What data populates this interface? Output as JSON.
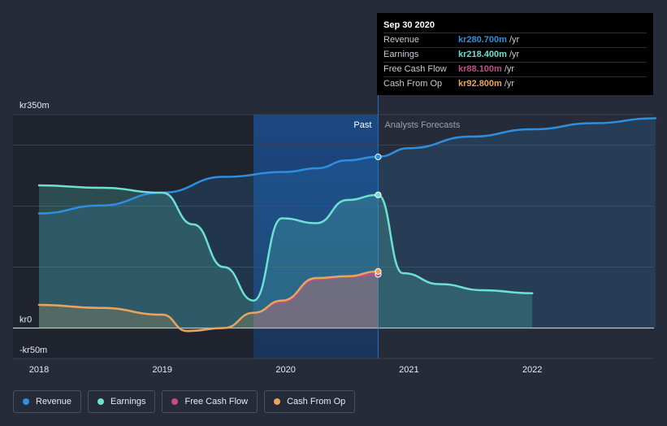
{
  "chart_data": {
    "type": "line",
    "title": "",
    "xlabel": "",
    "ylabel": "",
    "ylim": [
      -50,
      350
    ],
    "y_tick_labels": [
      {
        "value": 350,
        "label": "kr350m"
      },
      {
        "value": 0,
        "label": "kr0"
      },
      {
        "value": -50,
        "label": "-kr50m"
      }
    ],
    "x_ticks": [
      {
        "value": 2018,
        "label": "2018"
      },
      {
        "value": 2019,
        "label": "2019"
      },
      {
        "value": 2020,
        "label": "2020"
      },
      {
        "value": 2021,
        "label": "2021"
      },
      {
        "value": 2022,
        "label": "2022"
      }
    ],
    "x_range": [
      2017.78,
      2023.0
    ],
    "past_label": "Past",
    "forecast_label": "Analysts Forecasts",
    "past_end": 2020.75,
    "highlight_start": 2019.74,
    "series": [
      {
        "name": "Revenue",
        "color": "#2e8ee0",
        "points": [
          [
            2018.0,
            188
          ],
          [
            2018.5,
            201
          ],
          [
            2019.0,
            222
          ],
          [
            2019.5,
            248
          ],
          [
            2020.0,
            256
          ],
          [
            2020.25,
            262
          ],
          [
            2020.5,
            275
          ],
          [
            2020.75,
            281
          ],
          [
            2021.0,
            295
          ],
          [
            2021.5,
            314
          ],
          [
            2022.0,
            326
          ],
          [
            2022.5,
            336
          ],
          [
            2023.0,
            344
          ]
        ],
        "highlight_value": 280.7
      },
      {
        "name": "Earnings",
        "color": "#6ee0d0",
        "points": [
          [
            2018.0,
            234
          ],
          [
            2018.5,
            230
          ],
          [
            2019.0,
            222
          ],
          [
            2019.25,
            170
          ],
          [
            2019.5,
            100
          ],
          [
            2019.74,
            45
          ],
          [
            2019.97,
            180
          ],
          [
            2020.25,
            172
          ],
          [
            2020.5,
            210
          ],
          [
            2020.75,
            218.4
          ],
          [
            2020.95,
            90
          ],
          [
            2021.25,
            72
          ],
          [
            2021.6,
            62
          ],
          [
            2022.0,
            57
          ]
        ],
        "highlight_value": 218.4
      },
      {
        "name": "Free Cash Flow",
        "color": "#c94a8a",
        "points": [
          [
            2019.74,
            25
          ],
          [
            2019.97,
            43
          ],
          [
            2020.25,
            80
          ],
          [
            2020.5,
            84
          ],
          [
            2020.75,
            88.1
          ]
        ],
        "highlight_value": 88.1
      },
      {
        "name": "Cash From Op",
        "color": "#e8a560",
        "points": [
          [
            2018.0,
            38
          ],
          [
            2018.5,
            33
          ],
          [
            2019.0,
            22
          ],
          [
            2019.2,
            -5
          ],
          [
            2019.5,
            0
          ],
          [
            2019.74,
            25
          ],
          [
            2019.97,
            45
          ],
          [
            2020.25,
            82
          ],
          [
            2020.5,
            85
          ],
          [
            2020.75,
            92.8
          ]
        ],
        "highlight_value": 92.8
      }
    ]
  },
  "tooltip": {
    "date": "Sep 30 2020",
    "rows": [
      {
        "name": "Revenue",
        "value": "kr280.700m",
        "unit": "/yr",
        "color": "#2e8ee0"
      },
      {
        "name": "Earnings",
        "value": "kr218.400m",
        "unit": "/yr",
        "color": "#6ee0d0"
      },
      {
        "name": "Free Cash Flow",
        "value": "kr88.100m",
        "unit": "/yr",
        "color": "#c94a8a"
      },
      {
        "name": "Cash From Op",
        "value": "kr92.800m",
        "unit": "/yr",
        "color": "#e8a560"
      }
    ]
  },
  "legend": [
    {
      "label": "Revenue",
      "color": "#2e8ee0"
    },
    {
      "label": "Earnings",
      "color": "#6ee0d0"
    },
    {
      "label": "Free Cash Flow",
      "color": "#c94a8a"
    },
    {
      "label": "Cash From Op",
      "color": "#e8a560"
    }
  ]
}
